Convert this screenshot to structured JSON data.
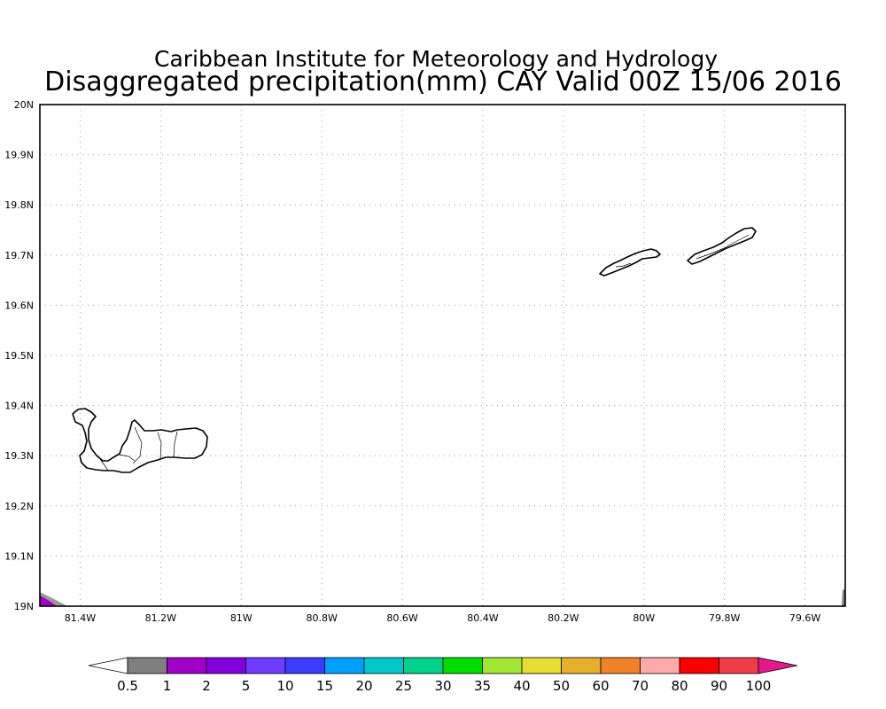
{
  "title": {
    "line1": "Caribbean Institute for Meteorology and Hydrology",
    "line2": "Disaggregated precipitation(mm) CAY Valid 00Z 15/06 2016"
  },
  "map": {
    "lon_range": [
      -81.5,
      -79.5
    ],
    "lat_range": [
      19.0,
      20.0
    ],
    "grid": true,
    "x_ticks": [
      {
        "value": -81.4,
        "label": "81.4W"
      },
      {
        "value": -81.2,
        "label": "81.2W"
      },
      {
        "value": -81.0,
        "label": "81W"
      },
      {
        "value": -80.8,
        "label": "80.8W"
      },
      {
        "value": -80.6,
        "label": "80.6W"
      },
      {
        "value": -80.4,
        "label": "80.4W"
      },
      {
        "value": -80.2,
        "label": "80.2W"
      },
      {
        "value": -80.0,
        "label": "80W"
      },
      {
        "value": -79.8,
        "label": "79.8W"
      },
      {
        "value": -79.6,
        "label": "79.6W"
      }
    ],
    "y_ticks": [
      {
        "value": 19.0,
        "label": "19N"
      },
      {
        "value": 19.1,
        "label": "19.1N"
      },
      {
        "value": 19.2,
        "label": "19.2N"
      },
      {
        "value": 19.3,
        "label": "19.3N"
      },
      {
        "value": 19.4,
        "label": "19.4N"
      },
      {
        "value": 19.5,
        "label": "19.5N"
      },
      {
        "value": 19.6,
        "label": "19.6N"
      },
      {
        "value": 19.7,
        "label": "19.7N"
      },
      {
        "value": 19.8,
        "label": "19.8N"
      },
      {
        "value": 19.9,
        "label": "19.9N"
      },
      {
        "value": 20.0,
        "label": "20N"
      }
    ]
  },
  "colorbar": {
    "colors": [
      "#ffffff",
      "#7f7f7f",
      "#a000c8",
      "#8200dc",
      "#6e3cff",
      "#3c3cff",
      "#00a0ff",
      "#00c8c8",
      "#00d28c",
      "#00dc00",
      "#a0e632",
      "#e6dc32",
      "#e6af2d",
      "#f08228",
      "#ffaaaa",
      "#fa0000",
      "#f03c46",
      "#e6198c"
    ],
    "labels": [
      "0.5",
      "1",
      "2",
      "5",
      "10",
      "15",
      "20",
      "25",
      "30",
      "35",
      "40",
      "50",
      "60",
      "70",
      "80",
      "90",
      "100"
    ]
  }
}
